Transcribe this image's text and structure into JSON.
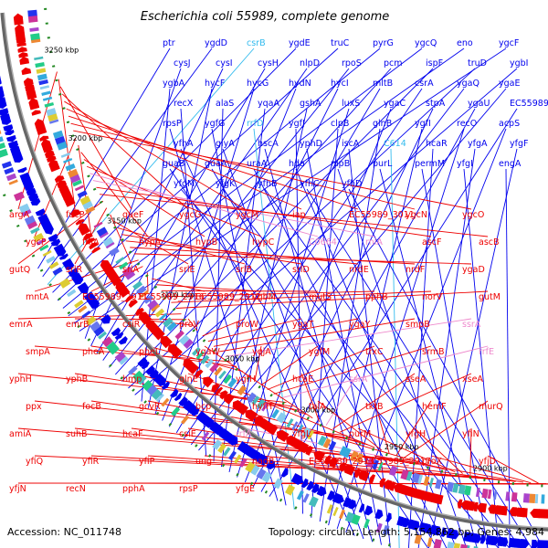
{
  "title": "Escherichia coli 55989, complete genome",
  "footer": {
    "accession": "Accession: NC_011748",
    "summary": "Topology: circular; Length: 5,154,862 bp; Genes: 4,984"
  },
  "colors": {
    "forward": "#0000ee",
    "reverse": "#ee0000",
    "rna": "#33bbee",
    "pseudo": "#ee88cc",
    "backbone": "#888888",
    "dashes": "#228822"
  },
  "ticks": [
    "3250 kbp",
    "3200 kbp",
    "3150 kbp",
    "3100 kbp",
    "3050 kbp",
    "3000 kbp",
    "2950 kbp",
    "2900 kbp",
    "2850 kbp"
  ],
  "forward_labels": [
    "ptr",
    "ygdD",
    "csrB",
    "ygdE",
    "truC",
    "pyrG",
    "ygcQ",
    "eno",
    "ygcF",
    "cysJ",
    "cysI",
    "cysH",
    "nlpD",
    "rpoS",
    "pcm",
    "ispF",
    "truD",
    "ygbI",
    "ygbA",
    "hycF",
    "hycG",
    "hydN",
    "hycI",
    "mltB",
    "csrA",
    "ygaQ",
    "ygaE",
    "recX",
    "alaS",
    "yqaA",
    "gshA",
    "luxS",
    "ygaC",
    "stpA",
    "ygaU",
    "EC55989_2923",
    "rpsP",
    "ygfG",
    "rrfD",
    "ygfJ",
    "clpB",
    "glnB",
    "ygfI",
    "recO",
    "acpS",
    "yfhA",
    "glyA",
    "hscA",
    "yphD",
    "iscA",
    "C614",
    "hcaR",
    "yfgA",
    "yfgF",
    "guaB",
    "guaA",
    "uraA",
    "hda",
    "nlpB",
    "purL",
    "permM",
    "yfgI",
    "engA",
    "yfgM",
    "yfgK",
    "yfhB",
    "yfhC",
    "yfhD"
  ],
  "reverse_labels": [
    "argA",
    "fucP",
    "queF",
    "ygcG",
    "ygcM",
    "iap",
    "EC55989_3011",
    "ygcN",
    "ygcO",
    "ygcP",
    "fhlA",
    "hypA",
    "hypB",
    "hypC",
    "C0664",
    "rnlA",
    "ascF",
    "ascB",
    "gutQ",
    "srlR",
    "srlA",
    "srlE",
    "srlB",
    "srlD",
    "nrdE",
    "nrdF",
    "ygaD",
    "mntA",
    "EC55989_2911",
    "EC55989_2916",
    "EC55989_2912",
    "ygbM",
    "mutS",
    "pphB",
    "norV",
    "gutM",
    "emrA",
    "emrB",
    "csiR",
    "proV",
    "proW",
    "ygaT",
    "ygaY",
    "smpB",
    "ssrA",
    "smpA",
    "pheA",
    "pheL",
    "ygaW",
    "yqjA",
    "ygfM",
    "trxC",
    "srmB",
    "rrfE",
    "yphH",
    "yphB",
    "hmp",
    "glnE",
    "ygfH",
    "hcaE",
    "ssrA",
    "sseA",
    "xseA",
    "ppx",
    "focB",
    "gcvR",
    "bcp",
    "hyfH",
    "talA",
    "tktB",
    "hemF",
    "murQ",
    "amiA",
    "suhB",
    "hcaF",
    "csiE",
    "rrfA",
    "yfgL",
    "purM",
    "yfgH",
    "yfiN",
    "yfiQ",
    "yfiR",
    "yfiP",
    "ung",
    "nadB",
    "EC55989_2913",
    "EC55989_2917",
    "proX",
    "yfjD",
    "yfjN",
    "recN",
    "pphA",
    "rpsP",
    "yfgE"
  ]
}
